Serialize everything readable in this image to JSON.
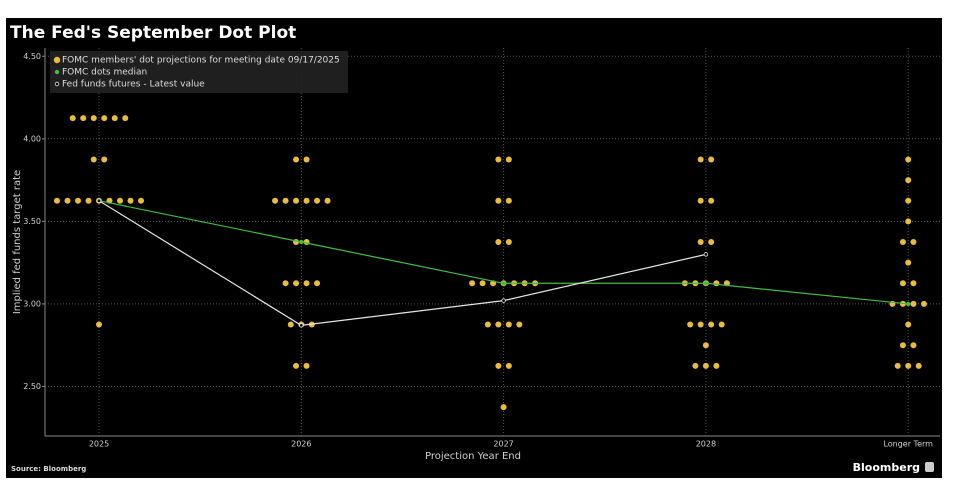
{
  "chart_data": {
    "type": "dotplot",
    "title": "The Fed's September Dot Plot",
    "x_label": "Projection Year End",
    "y_label": "Implied fed funds target rate",
    "source": "Source: Bloomberg",
    "brand": "Bloomberg",
    "categories": [
      "2025",
      "2026",
      "2027",
      "2028",
      "Longer Term"
    ],
    "ylim": [
      2.2,
      4.55
    ],
    "yticks": [
      {
        "value": 2.5,
        "label": "2.50"
      },
      {
        "value": 3,
        "label": "3.00"
      },
      {
        "value": 3.5,
        "label": "3.50"
      },
      {
        "value": 4,
        "label": "4.00"
      },
      {
        "value": 4.5,
        "label": "4.50"
      }
    ],
    "grid": true,
    "legend": "top-left",
    "dots": {
      "name": "FOMC members' dot projections for meeting date 09/17/2025",
      "color": "#e9bb3f",
      "values": [
        [
          4.125,
          4.125,
          4.125,
          4.125,
          4.125,
          4.125,
          3.875,
          3.875,
          3.625,
          3.625,
          3.625,
          3.625,
          3.625,
          3.625,
          3.625,
          3.625,
          3.625,
          2.875
        ],
        [
          3.875,
          3.875,
          3.625,
          3.625,
          3.625,
          3.625,
          3.625,
          3.625,
          3.375,
          3.375,
          3.125,
          3.125,
          3.125,
          3.125,
          2.875,
          2.875,
          2.875,
          2.625,
          2.625
        ],
        [
          3.875,
          3.875,
          3.625,
          3.625,
          3.375,
          3.375,
          3.125,
          3.125,
          3.125,
          3.125,
          3.125,
          3.125,
          3.125,
          2.875,
          2.875,
          2.875,
          2.875,
          2.625,
          2.625,
          2.375
        ],
        [
          3.875,
          3.875,
          3.625,
          3.625,
          3.375,
          3.375,
          3.125,
          3.125,
          3.125,
          3.125,
          3.125,
          2.875,
          2.875,
          2.875,
          2.875,
          2.75,
          2.625,
          2.625,
          2.625
        ],
        [
          3.875,
          3.75,
          3.625,
          3.5,
          3.375,
          3.375,
          3.25,
          3.125,
          3.125,
          3.0,
          3.0,
          3.0,
          3.0,
          2.875,
          2.75,
          2.75,
          2.625,
          2.625,
          2.625
        ]
      ]
    },
    "series": [
      {
        "name": "FOMC dots median",
        "color": "#3fbf3f",
        "values": [
          3.625,
          3.375,
          3.125,
          3.125,
          3.0
        ]
      },
      {
        "name": "Fed funds futures - Latest value",
        "color": "#e6e6e6",
        "values": [
          3.625,
          2.87,
          3.02,
          3.3,
          null
        ]
      }
    ]
  }
}
